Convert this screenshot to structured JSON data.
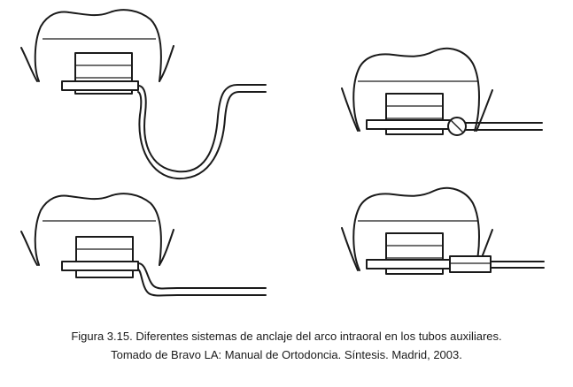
{
  "figure": {
    "panels": [
      {
        "id": "top-left",
        "appliance": "omega-loop-wire"
      },
      {
        "id": "top-right",
        "appliance": "tube-with-screw-stop"
      },
      {
        "id": "bottom-left",
        "appliance": "offset-step-wire"
      },
      {
        "id": "bottom-right",
        "appliance": "double-tube-sleeve"
      }
    ],
    "colors": {
      "line": "#1a1a1a",
      "background": "#ffffff"
    }
  },
  "caption": {
    "line1": "Figura 3.15. Diferentes sistemas de anclaje del arco intraoral en los tubos auxiliares.",
    "line2": "Tomado de Bravo LA: Manual de Ortodoncia. Síntesis. Madrid, 2003."
  }
}
